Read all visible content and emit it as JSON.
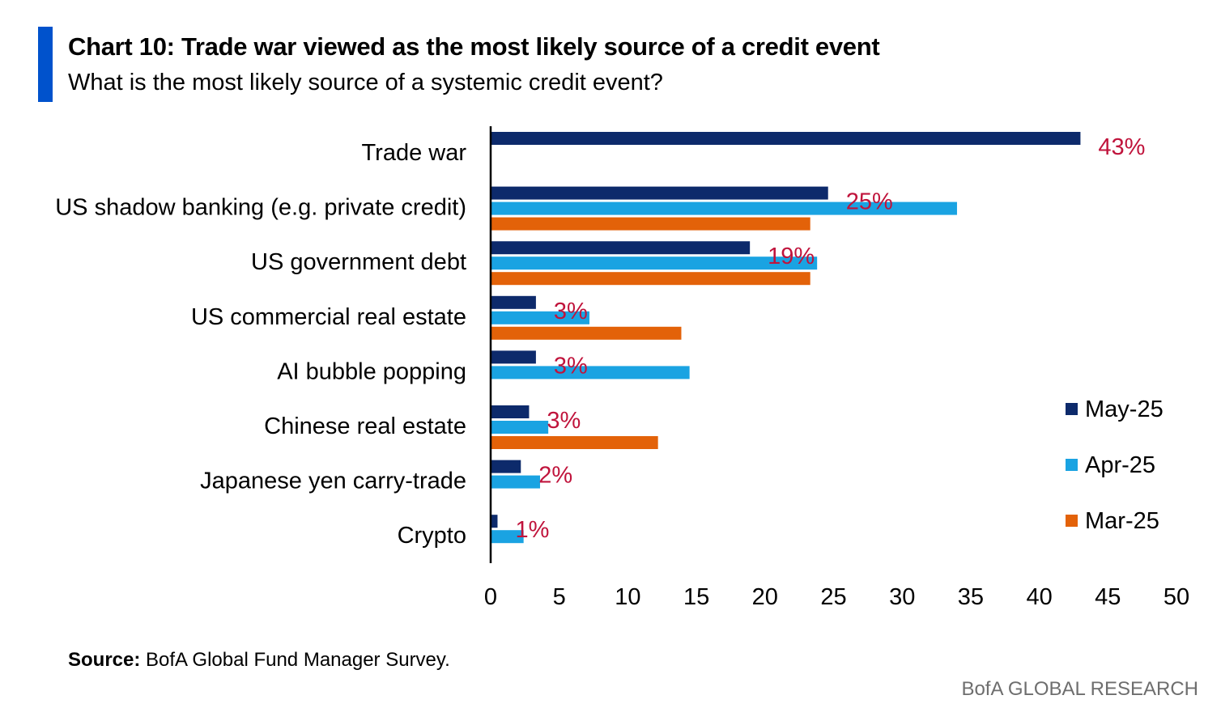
{
  "header": {
    "title": "Chart 10: Trade war viewed as the most likely source of a credit event",
    "subtitle": "What is the most likely source of a systemic credit event?"
  },
  "footer": {
    "source_label": "Source:",
    "source_text": "BofA Global Fund Manager Survey.",
    "brand": "BofA GLOBAL RESEARCH"
  },
  "colors": {
    "accent": "#0052cc",
    "may": "#0d2a6b",
    "apr": "#1aa3e2",
    "mar": "#e36209",
    "data_label": "#c0143c",
    "axis": "#000000"
  },
  "chart_data": {
    "type": "bar",
    "orientation": "horizontal",
    "title": "Chart 10: Trade war viewed as the most likely source of a credit event",
    "subtitle": "What is the most likely source of a systemic credit event?",
    "categories": [
      "Trade war",
      "US shadow banking (e.g. private credit)",
      "US government debt",
      "US commercial real estate",
      "AI bubble popping",
      "Chinese real estate",
      "Japanese yen carry-trade",
      "Crypto"
    ],
    "series": [
      {
        "name": "May-25",
        "values": [
          43,
          24.6,
          18.9,
          3.3,
          3.3,
          2.8,
          2.2,
          0.5
        ]
      },
      {
        "name": "Apr-25",
        "values": [
          null,
          34,
          23.8,
          7.2,
          14.5,
          4.2,
          3.6,
          2.4
        ]
      },
      {
        "name": "Mar-25",
        "values": [
          null,
          23.3,
          23.3,
          13.9,
          null,
          12.2,
          null,
          null
        ]
      }
    ],
    "data_labels": [
      "43%",
      "25%",
      "19%",
      "3%",
      "3%",
      "3%",
      "2%",
      "1%"
    ],
    "xlim": [
      0,
      50
    ],
    "xticks": [
      0,
      5,
      10,
      15,
      20,
      25,
      30,
      35,
      40,
      45,
      50
    ],
    "xlabel": "",
    "ylabel": "",
    "grid": false,
    "legend_position": "right"
  }
}
